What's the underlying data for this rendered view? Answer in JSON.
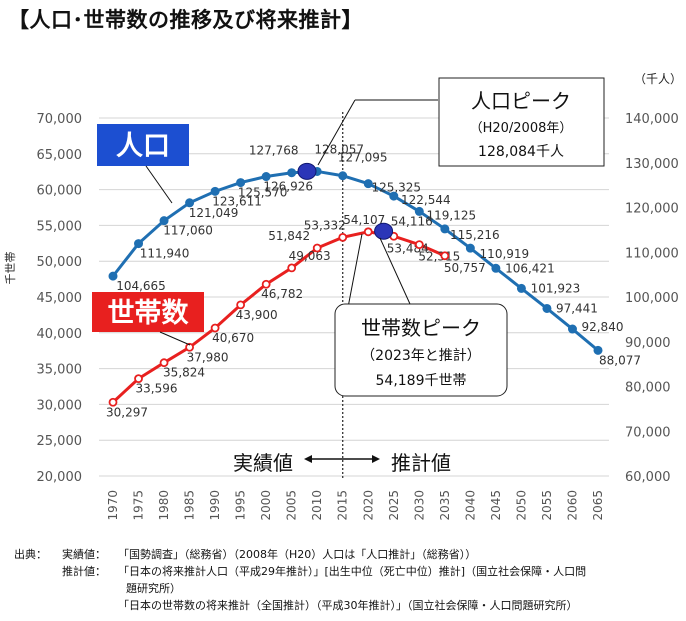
{
  "page_title": "【人口･世帯数の推移及び将来推計】",
  "chart_data": {
    "type": "line",
    "x": [
      1970,
      1975,
      1980,
      1985,
      1990,
      1995,
      2000,
      2005,
      2010,
      2015,
      2020,
      2025,
      2030,
      2035,
      2040,
      2045,
      2050,
      2055,
      2060,
      2065
    ],
    "x_tick_labels": [
      "1970",
      "1975",
      "1980",
      "1985",
      "1990",
      "1995",
      "2000",
      "2005",
      "2010",
      "2015",
      "2020",
      "2025",
      "2030",
      "2035",
      "2040",
      "2045",
      "2050",
      "2055",
      "2060",
      "2065"
    ],
    "ylabel_left": "千世帯",
    "ylabel_right": "（千人）",
    "ylim_left": [
      20000,
      70000
    ],
    "ylim_right": [
      60000,
      140000
    ],
    "yticks_left": [
      "20,000",
      "25,000",
      "30,000",
      "35,000",
      "40,000",
      "45,000",
      "50,000",
      "55,000",
      "60,000",
      "65,000",
      "70,000"
    ],
    "yticks_right": [
      "60,000",
      "70,000",
      "80,000",
      "90,000",
      "100,000",
      "110,000",
      "120,000",
      "130,000",
      "140,000"
    ],
    "divider_x": 2015,
    "series": [
      {
        "name": "人口",
        "axis": "right",
        "color": "#1f6fb2",
        "x": [
          1970,
          1975,
          1980,
          1985,
          1990,
          1995,
          2000,
          2005,
          2010,
          2015,
          2020,
          2025,
          2030,
          2035,
          2040,
          2045,
          2050,
          2055,
          2060,
          2065
        ],
        "values": [
          104665,
          111940,
          117060,
          121049,
          123611,
          125570,
          126926,
          127768,
          128057,
          127095,
          125325,
          122544,
          119125,
          115216,
          110919,
          106421,
          101923,
          97441,
          92840,
          88077
        ],
        "labels": [
          "104,665",
          "111,940",
          "117,060",
          "121,049",
          "123,611",
          "125,570",
          "126,926",
          "127,768",
          "128,057",
          "127,095",
          "125,325",
          "122,544",
          "119,125",
          "115,216",
          "110,919",
          "106,421",
          "101,923",
          "97,441",
          "92,840",
          "88,077"
        ],
        "peak": {
          "x": 2008,
          "value": 128084
        }
      },
      {
        "name": "世帯数",
        "axis": "left",
        "color": "#e8201f",
        "x": [
          1970,
          1975,
          1980,
          1985,
          1990,
          1995,
          2000,
          2005,
          2010,
          2015,
          2020,
          2025,
          2030,
          2035,
          2040
        ],
        "values": [
          30297,
          33596,
          35824,
          37980,
          40670,
          43900,
          46782,
          49063,
          51842,
          53332,
          54107,
          53484,
          52315,
          50757,
          null
        ],
        "labels": [
          "30,297",
          "33,596",
          "35,824",
          "37,980",
          "40,670",
          "43,900",
          "46,782",
          "49,063",
          "51,842",
          "53,332",
          "54,107",
          "53,484",
          "52,315",
          "50,757",
          ""
        ],
        "extra_labels": [
          "54,116"
        ],
        "peak": {
          "x": 2023,
          "value": 54189
        }
      }
    ],
    "legend": {
      "population": "人口",
      "households": "世帯数"
    },
    "annotations": {
      "pop_peak": {
        "line1": "人口ピーク",
        "line2": "（H20/2008年）",
        "line3": "128,084千人"
      },
      "hh_peak": {
        "line1": "世帯数ピーク",
        "line2": "（2023年と推計）",
        "line3": "54,189千世帯"
      },
      "actual": "実績値",
      "estimate": "推計値"
    }
  },
  "notes": {
    "label1": "出典：",
    "prefix1": "実績値：",
    "line1": "「国勢調査」（総務省）（2008年（H20）人口は「人口推計」（総務省））",
    "prefix2": "推計値：",
    "line2": "「日本の将来推計人口（平成29年推計）」[出生中位（死亡中位）推計]（国立社会保障・人口問",
    "line3": "題研究所）",
    "line4": "「日本の世帯数の将来推計（全国推計）（平成30年推計）」（国立社会保障・人口問題研究所）"
  }
}
